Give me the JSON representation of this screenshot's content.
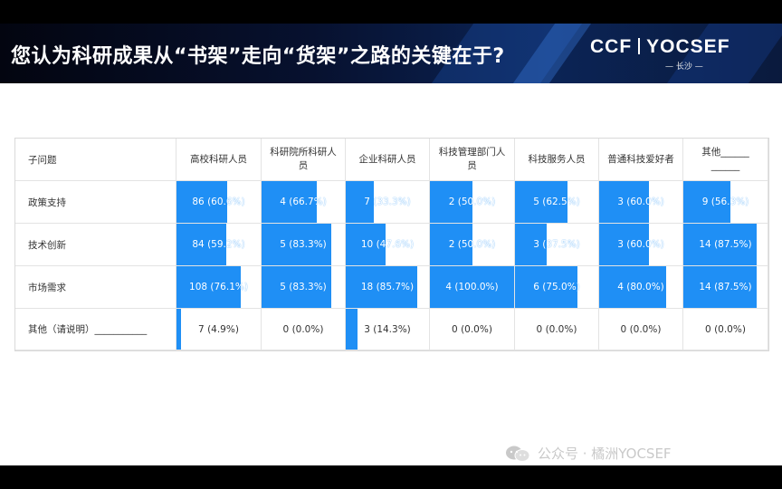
{
  "slide": {
    "title": "您认为科研成果从“书架”走向“货架”之路的关键在于?",
    "logo_left": "CCF",
    "logo_right": "YOCSEF",
    "logo_city": "— 长沙 —",
    "watermark": "公众号 · 橘洲YOCSEF"
  },
  "colors": {
    "bar": "#1f8ff5",
    "banner_dark": "#07112f",
    "banner_blue": "#0b2456"
  },
  "table": {
    "corner_header": "子问题",
    "columns": [
      "高校科研人员",
      "科研院所科研人员",
      "企业科研人员",
      "科技管理部门人员",
      "科技服务人员",
      "普通科技爱好者",
      "其他______ ______"
    ],
    "rows": [
      {
        "label": "政策支持",
        "cells": [
          {
            "text": "86 (60.6%)",
            "pct": 0.606
          },
          {
            "text": "4 (66.7%)",
            "pct": 0.667
          },
          {
            "text": "7 (33.3%)",
            "pct": 0.333
          },
          {
            "text": "2 (50.0%)",
            "pct": 0.5
          },
          {
            "text": "5 (62.5%)",
            "pct": 0.625
          },
          {
            "text": "3 (60.0%)",
            "pct": 0.6
          },
          {
            "text": "9 (56.3%)",
            "pct": 0.563
          }
        ]
      },
      {
        "label": "技术创新",
        "cells": [
          {
            "text": "84 (59.2%)",
            "pct": 0.592
          },
          {
            "text": "5 (83.3%)",
            "pct": 0.833
          },
          {
            "text": "10 (47.6%)",
            "pct": 0.476
          },
          {
            "text": "2 (50.0%)",
            "pct": 0.5
          },
          {
            "text": "3 (37.5%)",
            "pct": 0.375
          },
          {
            "text": "3 (60.0%)",
            "pct": 0.6
          },
          {
            "text": "14 (87.5%)",
            "pct": 0.875
          }
        ]
      },
      {
        "label": "市场需求",
        "cells": [
          {
            "text": "108 (76.1%)",
            "pct": 0.761
          },
          {
            "text": "5 (83.3%)",
            "pct": 0.833
          },
          {
            "text": "18 (85.7%)",
            "pct": 0.857
          },
          {
            "text": "4 (100.0%)",
            "pct": 1.0
          },
          {
            "text": "6 (75.0%)",
            "pct": 0.75
          },
          {
            "text": "4 (80.0%)",
            "pct": 0.8
          },
          {
            "text": "14 (87.5%)",
            "pct": 0.875
          }
        ]
      },
      {
        "label": "其他（请说明）___________",
        "cells": [
          {
            "text": "7 (4.9%)",
            "pct": 0.049
          },
          {
            "text": "0 (0.0%)",
            "pct": 0
          },
          {
            "text": "3 (14.3%)",
            "pct": 0.143
          },
          {
            "text": "0 (0.0%)",
            "pct": 0
          },
          {
            "text": "0 (0.0%)",
            "pct": 0
          },
          {
            "text": "0 (0.0%)",
            "pct": 0
          },
          {
            "text": "0 (0.0%)",
            "pct": 0
          }
        ]
      }
    ]
  }
}
